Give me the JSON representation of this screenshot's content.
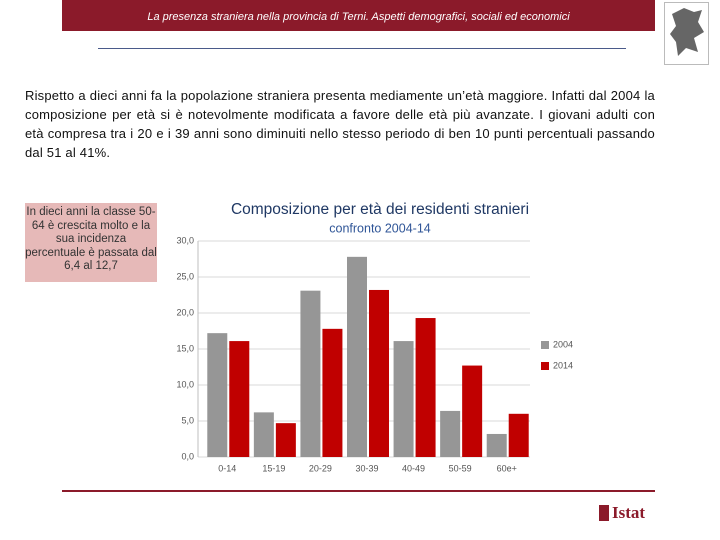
{
  "header": {
    "title": "La presenza straniera nella provincia di Terni. Aspetti demografici, sociali ed economici"
  },
  "paragraph": "Rispetto a dieci anni fa la popolazione straniera presenta mediamente un’età maggiore. Infatti dal 2004 la composizione per età si è notevolmente modificata a favore delle età più avanzate. I giovani adulti con età compresa tra i 20 e i 39 anni sono diminuiti nello stesso periodo di ben 10 punti percentuali passando dal 51 al 41%.",
  "note": "In dieci anni la classe 50-64 è crescita molto e la sua incidenza percentuale è passata dal 6,4 al 12,7",
  "footer": {
    "logo": "Istat"
  },
  "chart_data": {
    "type": "bar",
    "title": "Composizione per età dei residenti stranieri",
    "subtitle": "confronto 2004-14",
    "categories": [
      "0-14",
      "15-19",
      "20-29",
      "30-39",
      "40-49",
      "50-59",
      "60e+"
    ],
    "series": [
      {
        "name": "2004",
        "color": "#969696",
        "values": [
          17.2,
          6.2,
          23.1,
          27.8,
          16.1,
          6.4,
          3.2
        ]
      },
      {
        "name": "2014",
        "color": "#c00000",
        "values": [
          16.1,
          4.7,
          17.8,
          23.2,
          19.3,
          12.7,
          6.0
        ]
      }
    ],
    "ylim": [
      0,
      30
    ],
    "yticks": [
      {
        "value": 0,
        "label": "0,0"
      },
      {
        "value": 5,
        "label": "5,0"
      },
      {
        "value": 10,
        "label": "10,0"
      },
      {
        "value": 15,
        "label": "15,0"
      },
      {
        "value": 20,
        "label": "20,0"
      },
      {
        "value": 25,
        "label": "25,0"
      },
      {
        "value": 30,
        "label": "30,0"
      }
    ],
    "grid": true,
    "legend": "right"
  }
}
